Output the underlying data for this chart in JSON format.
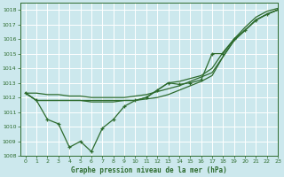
{
  "title": "Graphe pression niveau de la mer (hPa)",
  "bg_color": "#cce8ed",
  "grid_color": "#ffffff",
  "line_color": "#2d6b2d",
  "xlim": [
    -0.5,
    23
  ],
  "ylim": [
    1008,
    1018.5
  ],
  "xticks": [
    0,
    1,
    2,
    3,
    4,
    5,
    6,
    7,
    8,
    9,
    10,
    11,
    12,
    13,
    14,
    15,
    16,
    17,
    18,
    19,
    20,
    21,
    22,
    23
  ],
  "yticks": [
    1008,
    1009,
    1010,
    1011,
    1012,
    1013,
    1014,
    1015,
    1016,
    1017,
    1018
  ],
  "line_straight": [
    1012.3,
    1012.3,
    1012.2,
    1012.2,
    1012.1,
    1012.1,
    1012.0,
    1012.0,
    1012.0,
    1012.0,
    1012.1,
    1012.2,
    1012.4,
    1012.6,
    1012.8,
    1013.1,
    1013.4,
    1013.7,
    1014.8,
    1015.9,
    1016.6,
    1017.3,
    1017.7,
    1018.0
  ],
  "line_lower_straight": [
    1012.3,
    1011.8,
    1011.8,
    1011.8,
    1011.8,
    1011.8,
    1011.7,
    1011.7,
    1011.7,
    1011.8,
    1011.8,
    1011.9,
    1012.0,
    1012.2,
    1012.5,
    1012.8,
    1013.1,
    1013.5,
    1014.8,
    1015.9,
    1016.6,
    1017.3,
    1017.7,
    1018.0
  ],
  "line_zigzag": [
    1012.3,
    1011.8,
    1010.5,
    1010.2,
    1008.6,
    1009.0,
    1008.3,
    1009.9,
    1010.5,
    1011.4,
    1011.8,
    1012.0,
    1012.5,
    1013.0,
    1012.9,
    1013.0,
    1013.2,
    1015.0,
    1015.0,
    1016.0,
    1016.6,
    1017.3,
    1017.7,
    1018.0
  ],
  "line_top": [
    1012.3,
    1011.8,
    1011.8,
    1011.8,
    1011.8,
    1011.8,
    1011.8,
    1011.8,
    1011.8,
    1011.8,
    1011.8,
    1012.0,
    1012.5,
    1013.0,
    1013.1,
    1013.3,
    1013.5,
    1014.0,
    1015.1,
    1016.0,
    1016.8,
    1017.5,
    1017.9,
    1018.1
  ]
}
